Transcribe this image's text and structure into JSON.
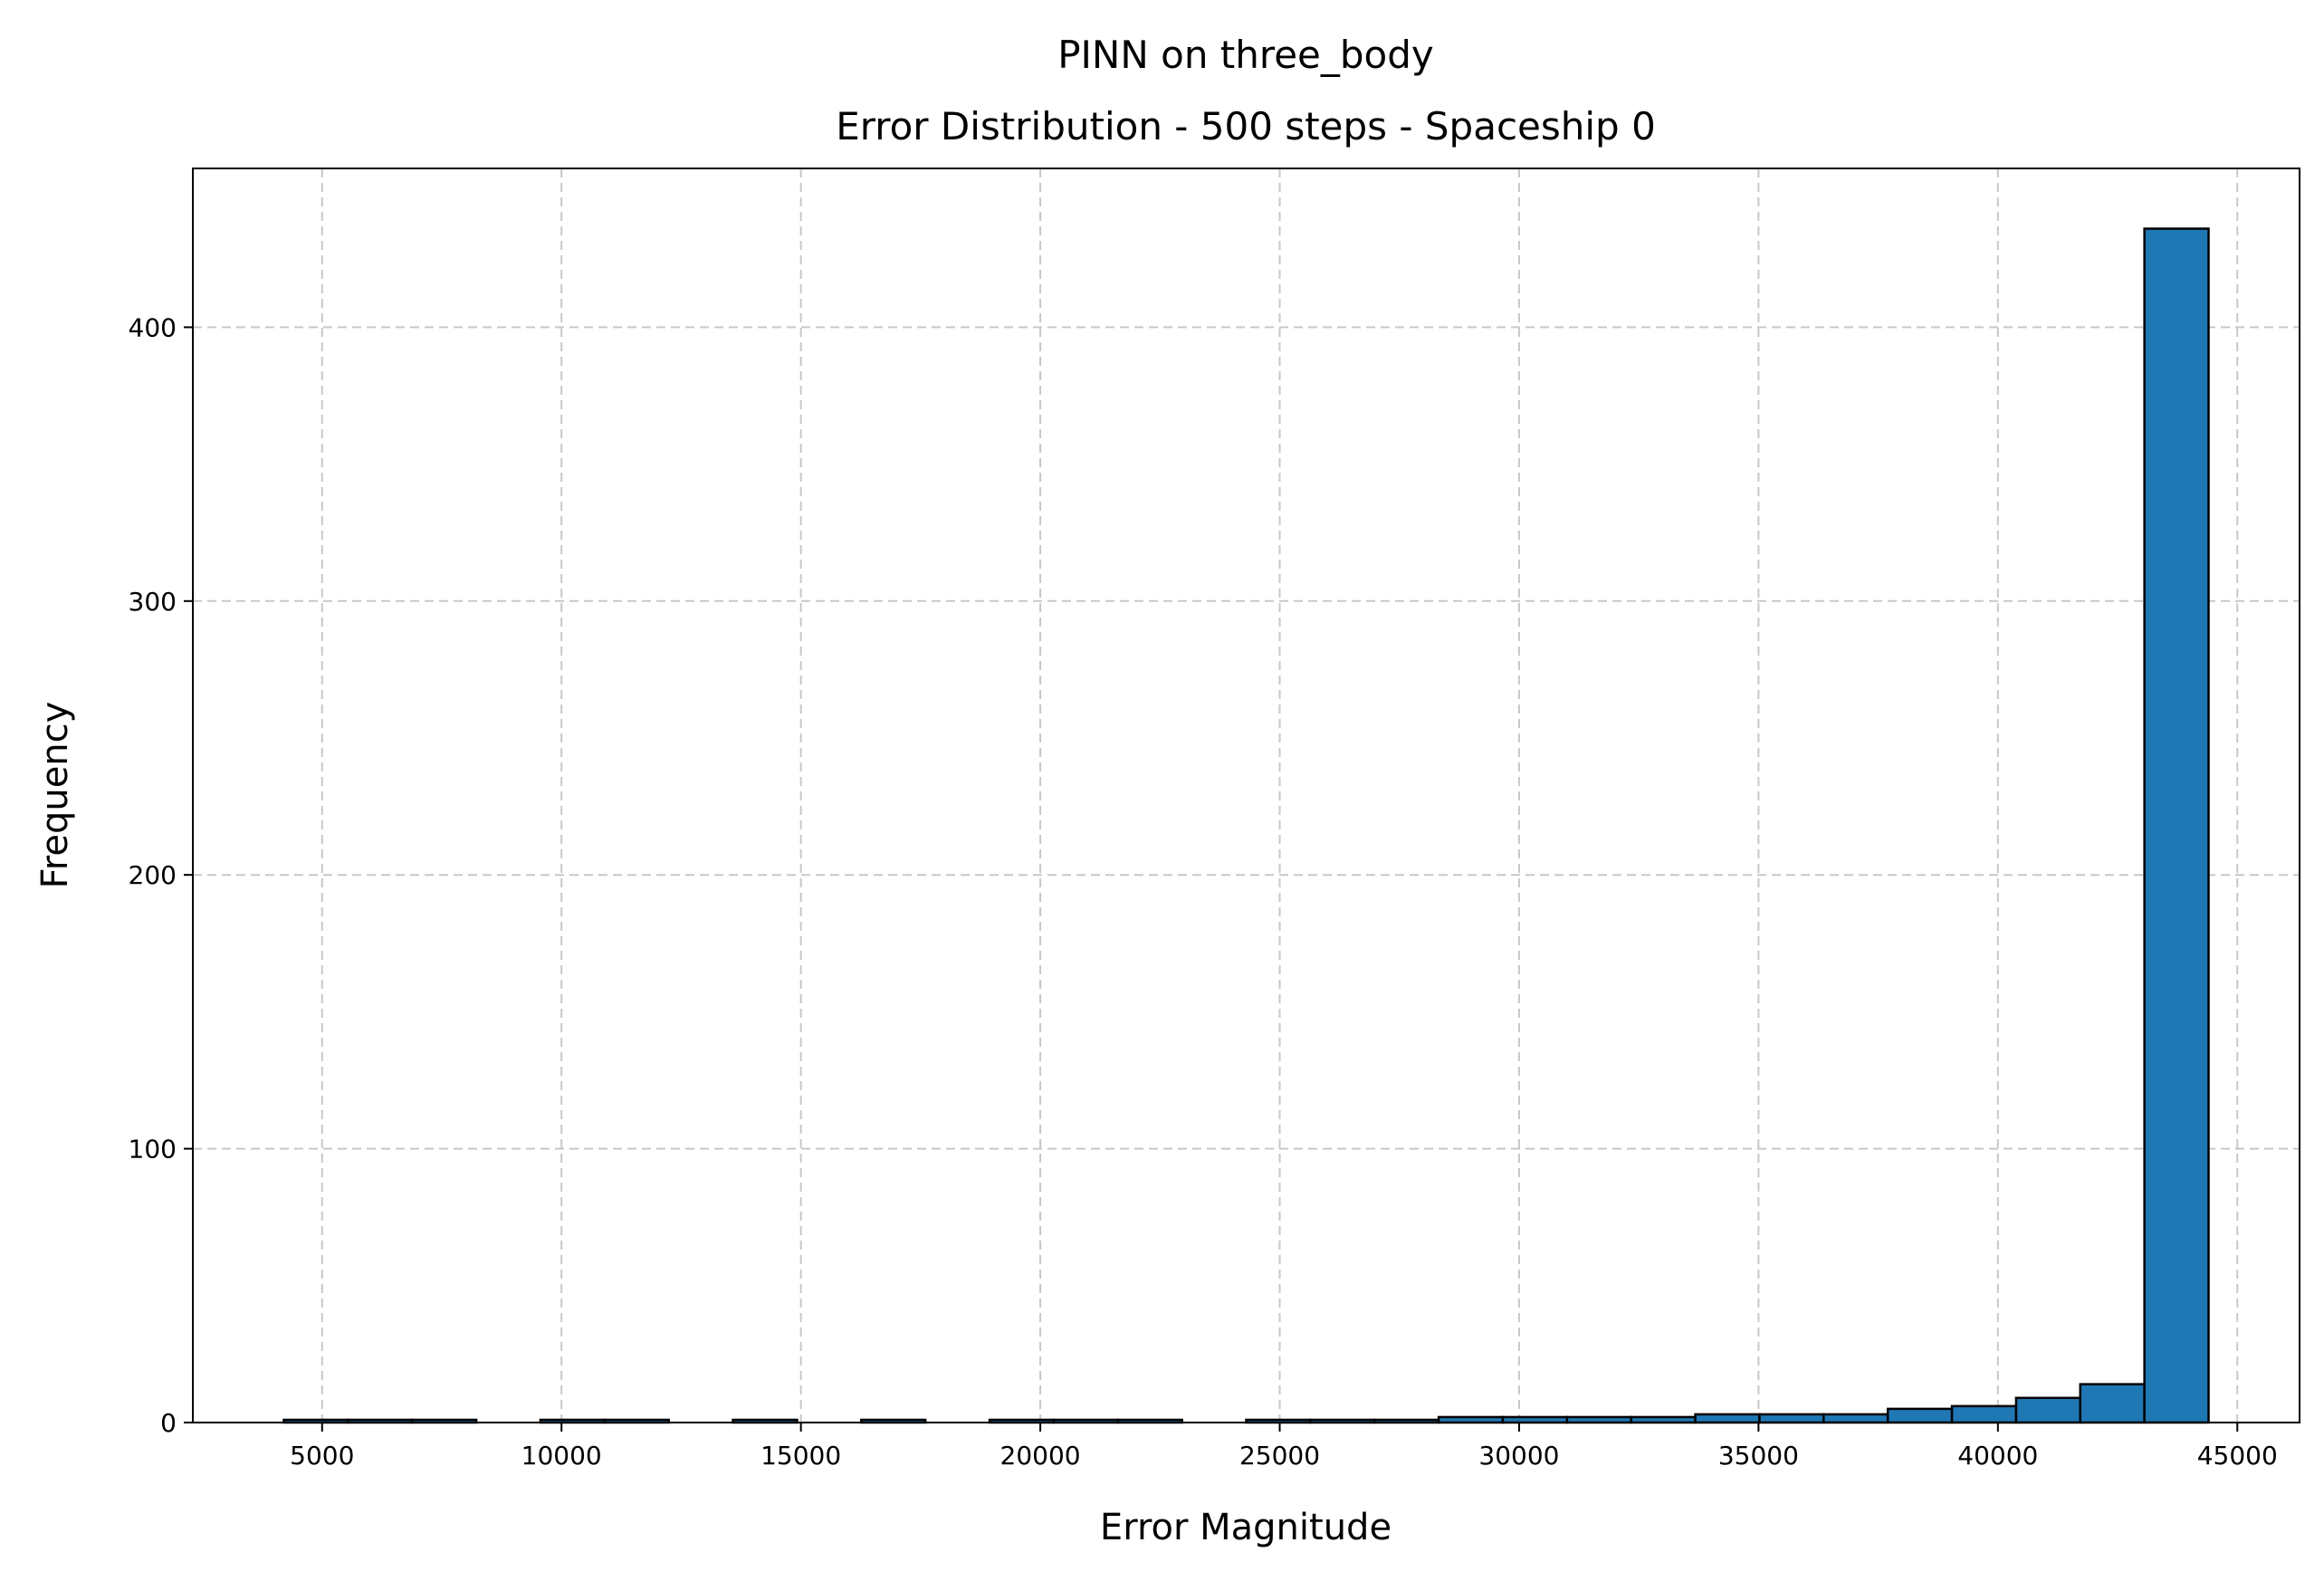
{
  "chart_data": {
    "type": "bar",
    "title": "PINN on three_body",
    "subtitle": "Error Distribution - 500 steps - Spaceship 0",
    "xlabel": "Error Magnitude",
    "ylabel": "Frequency",
    "xlim": [
      2300,
      46300
    ],
    "ylim": [
      0,
      458
    ],
    "grid": true,
    "x_ticks": [
      5000,
      10000,
      15000,
      20000,
      25000,
      30000,
      35000,
      40000,
      45000
    ],
    "y_ticks": [
      0,
      100,
      200,
      300,
      400
    ],
    "bin_edges": [
      4200,
      5540,
      6880,
      8220,
      9560,
      10900,
      12240,
      13580,
      14920,
      16260,
      17600,
      18940,
      20280,
      21620,
      22960,
      24300,
      25640,
      26980,
      28320,
      29660,
      31000,
      32340,
      33680,
      35020,
      36360,
      37700,
      39040,
      40380,
      41720,
      43060,
      44400
    ],
    "values": [
      1,
      1,
      1,
      0,
      1,
      1,
      0,
      1,
      0,
      1,
      0,
      1,
      1,
      1,
      0,
      1,
      1,
      1,
      2,
      2,
      2,
      2,
      3,
      3,
      3,
      5,
      6,
      9,
      14,
      436
    ],
    "series": [
      {
        "name": "",
        "color": "#1f77b4",
        "edge_color": "#000000"
      }
    ]
  }
}
